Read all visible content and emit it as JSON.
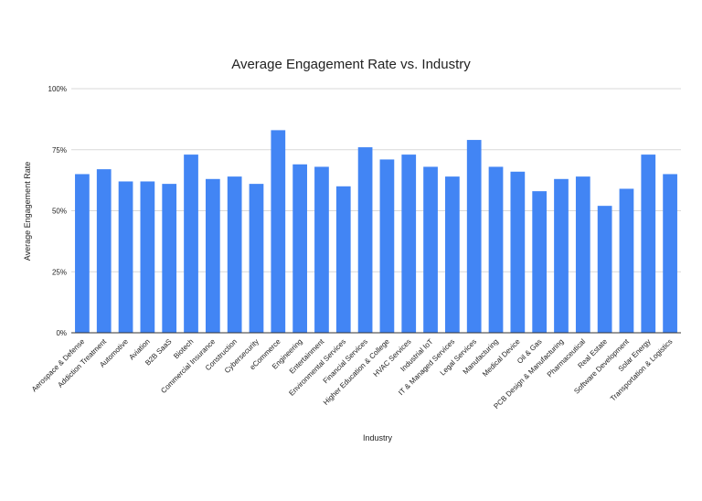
{
  "chart_data": {
    "type": "bar",
    "title": "Average Engagement Rate vs. Industry",
    "xlabel": "Industry",
    "ylabel": "Average Engagement Rate",
    "ylim": [
      0,
      1
    ],
    "yticks": [
      "0%",
      "25%",
      "50%",
      "75%",
      "100%"
    ],
    "ytick_values": [
      0,
      0.25,
      0.5,
      0.75,
      1.0
    ],
    "grid": true,
    "bar_color": "#4285f4",
    "categories": [
      "Aerospace & Defense",
      "Addiction Treatment",
      "Automotive",
      "Aviation",
      "B2B SaaS",
      "Biotech",
      "Commercial Insurance",
      "Construction",
      "Cybersecurity",
      "eCommerce",
      "Engineering",
      "Entertainment",
      "Environmental Services",
      "Financial Services",
      "Higher Education & College",
      "HVAC Services",
      "Industrial IoT",
      "IT & Managed Services",
      "Legal Services",
      "Manufacturing",
      "Medical Device",
      "Oil & Gas",
      "PCB Design & Manufacturing",
      "Pharmaceutical",
      "Real Estate",
      "Software Development",
      "Solar Energy",
      "Transportation & Logistics"
    ],
    "values": [
      0.65,
      0.67,
      0.62,
      0.62,
      0.61,
      0.73,
      0.63,
      0.64,
      0.61,
      0.83,
      0.69,
      0.68,
      0.6,
      0.76,
      0.71,
      0.73,
      0.68,
      0.64,
      0.79,
      0.68,
      0.66,
      0.58,
      0.63,
      0.64,
      0.52,
      0.59,
      0.73,
      0.65
    ]
  }
}
